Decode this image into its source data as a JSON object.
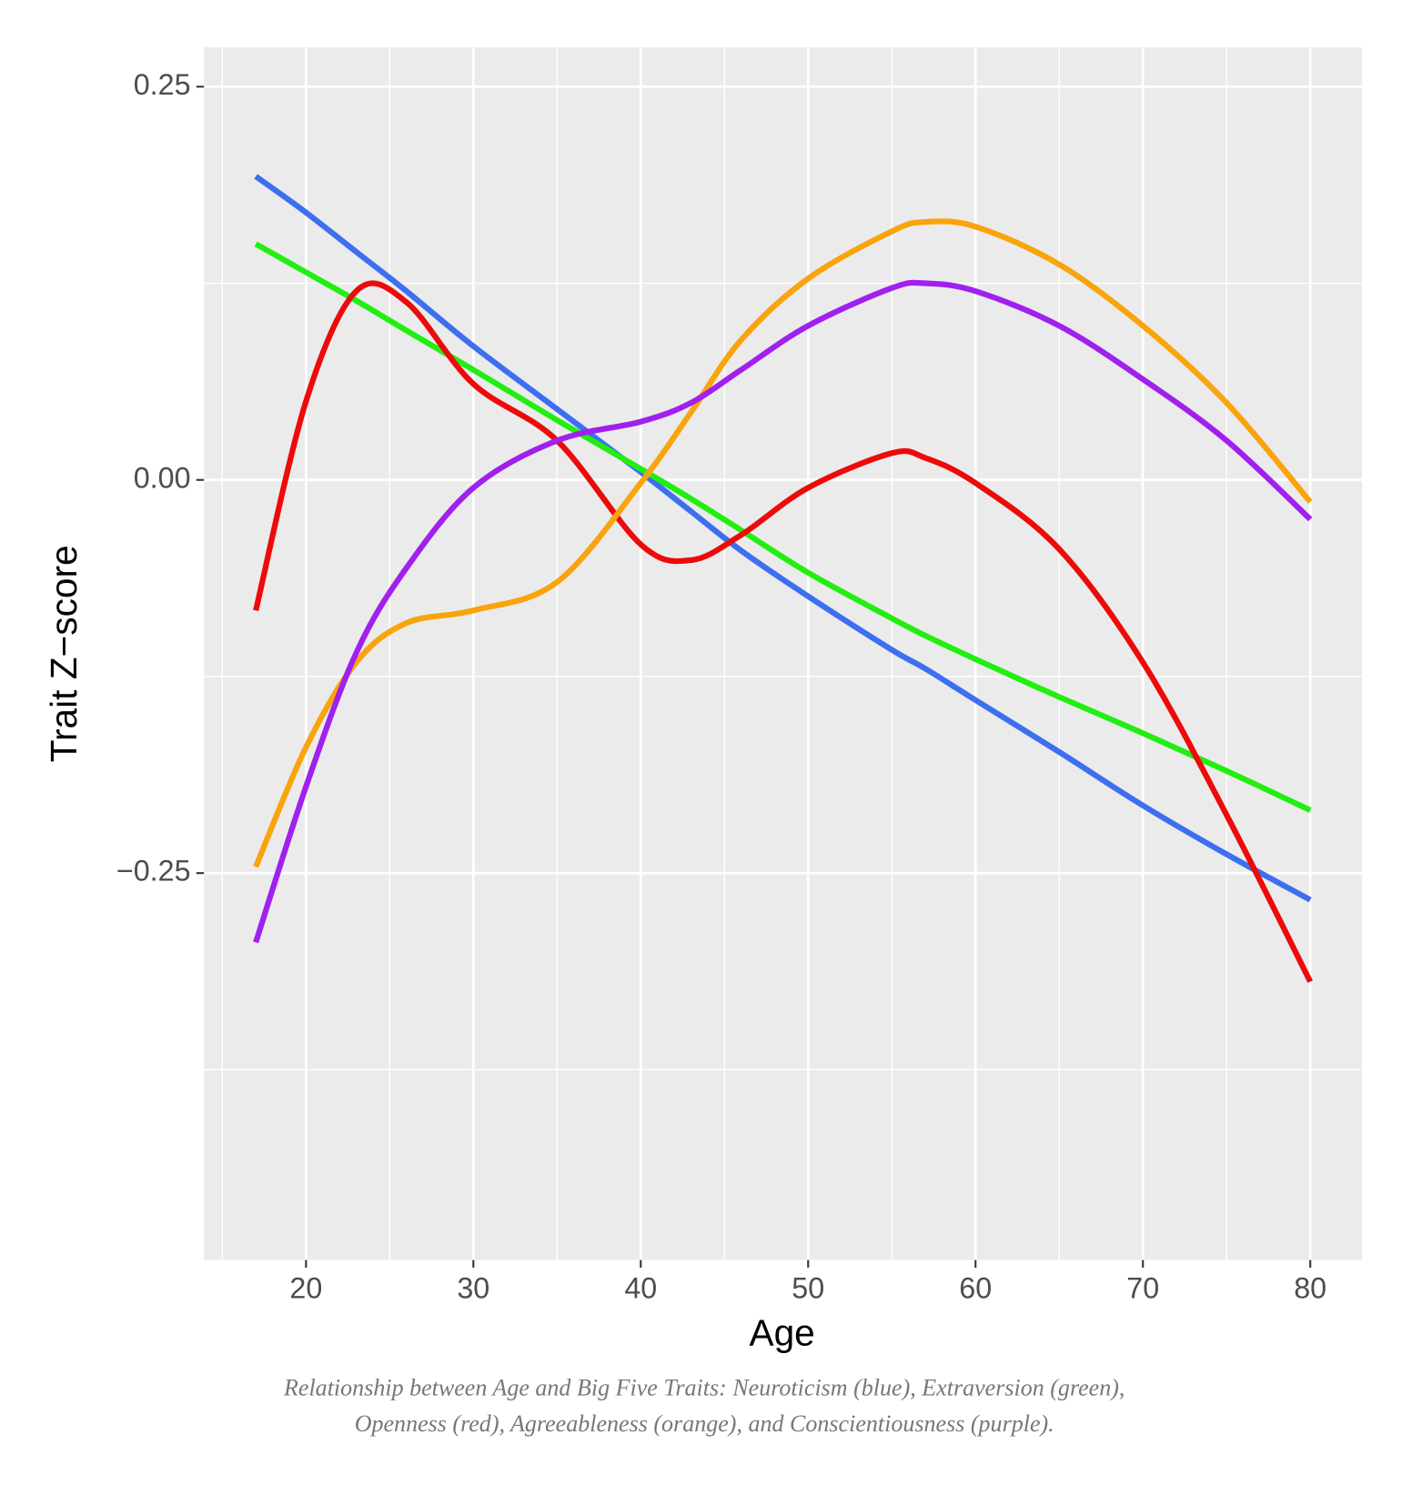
{
  "chart_data": {
    "type": "line",
    "x_label": "Age",
    "y_label": "Trait Z−score",
    "caption": [
      "Relationship between Age and Big Five Traits: Neuroticism (blue), Extraversion (green),",
      "Openness (red), Agreeableness (orange), and Conscientiousness (purple)."
    ],
    "x": [
      17,
      20,
      23,
      26,
      30,
      35,
      40,
      43,
      46,
      50,
      55,
      57,
      60,
      65,
      70,
      75,
      80
    ],
    "series": [
      {
        "color": "#3d6ff0",
        "values": [
          0.193,
          0.17,
          0.145,
          0.12,
          0.085,
          0.045,
          0.005,
          -0.02,
          -0.045,
          -0.074,
          -0.108,
          -0.12,
          -0.14,
          -0.173,
          -0.207,
          -0.238,
          -0.267
        ]
      },
      {
        "color": "#22ee11",
        "values": [
          0.15,
          0.132,
          0.114,
          0.095,
          0.07,
          0.038,
          0.007,
          -0.012,
          -0.032,
          -0.059,
          -0.088,
          -0.099,
          -0.114,
          -0.138,
          -0.161,
          -0.185,
          -0.21
        ]
      },
      {
        "color": "#ee0a0a",
        "values": [
          -0.083,
          0.05,
          0.12,
          0.113,
          0.061,
          0.025,
          -0.041,
          -0.051,
          -0.035,
          -0.005,
          0.017,
          0.014,
          -0.002,
          -0.044,
          -0.116,
          -0.213,
          -0.319
        ]
      },
      {
        "color": "#f9a40c",
        "values": [
          -0.246,
          -0.17,
          -0.116,
          -0.091,
          -0.083,
          -0.065,
          -0.002,
          0.043,
          0.089,
          0.128,
          0.158,
          0.164,
          0.161,
          0.137,
          0.098,
          0.049,
          -0.014
        ]
      },
      {
        "color": "#a020ee",
        "values": [
          -0.294,
          -0.195,
          -0.11,
          -0.056,
          -0.005,
          0.025,
          0.037,
          0.049,
          0.07,
          0.098,
          0.122,
          0.125,
          0.12,
          0.098,
          0.064,
          0.025,
          -0.025
        ]
      }
    ],
    "xlim": [
      13.9,
      83.1
    ],
    "ylim": [
      -0.496,
      0.275
    ],
    "xticks": [
      20,
      30,
      40,
      50,
      60,
      70,
      80
    ],
    "yticks": [
      {
        "value": -0.25,
        "label": "−0.25"
      },
      {
        "value": 0,
        "label": "0.00"
      },
      0.25
    ],
    "grid": true
  }
}
